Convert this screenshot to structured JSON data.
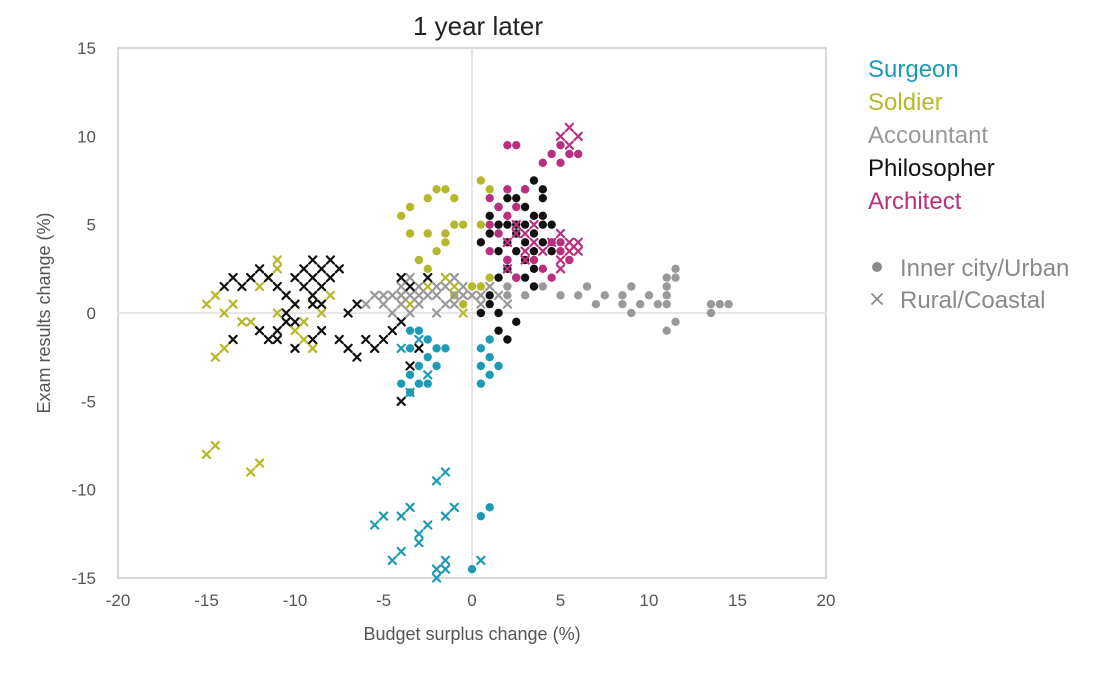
{
  "chart_data": {
    "type": "scatter",
    "title": "1 year later",
    "xlabel": "Budget surplus change (%)",
    "ylabel": "Exam results change (%)",
    "xlim": [
      -20,
      20
    ],
    "ylim": [
      -15,
      15
    ],
    "xticks": [
      -20,
      -15,
      -10,
      -5,
      0,
      5,
      10,
      15,
      20
    ],
    "yticks": [
      -15,
      -10,
      -5,
      0,
      5,
      10,
      15
    ],
    "grid": "zero lines only",
    "legend_position": "right",
    "marker_legend": [
      {
        "marker": "circle",
        "label": "Inner city/Urban"
      },
      {
        "marker": "cross",
        "label": "Rural/Coastal"
      }
    ],
    "series": [
      {
        "name": "Surgeon",
        "color": "#1e9ab5",
        "urban": [
          [
            -3.5,
            -1
          ],
          [
            -3,
            -1
          ],
          [
            -2.5,
            -1.5
          ],
          [
            -3.5,
            -2
          ],
          [
            -2,
            -2
          ],
          [
            -1.5,
            -2
          ],
          [
            -3,
            -3
          ],
          [
            -2.5,
            -2.5
          ],
          [
            -2,
            -3
          ],
          [
            -4,
            -4
          ],
          [
            -3.5,
            -3.5
          ],
          [
            -3,
            -4
          ],
          [
            -2.5,
            -4
          ],
          [
            -3.5,
            -4.5
          ],
          [
            0.5,
            -2
          ],
          [
            1,
            -2.5
          ],
          [
            0.5,
            -3
          ],
          [
            1.5,
            -3
          ],
          [
            1,
            -3.5
          ],
          [
            0.5,
            -4
          ],
          [
            1,
            -1.5
          ],
          [
            0.5,
            -11.5
          ],
          [
            1,
            -11
          ],
          [
            0,
            -14.5
          ]
        ],
        "rural": [
          [
            -4,
            -2
          ],
          [
            -3,
            -1.5
          ],
          [
            -2.5,
            -3.5
          ],
          [
            -3.5,
            -4.5
          ],
          [
            -5.5,
            -12
          ],
          [
            -5,
            -11.5
          ],
          [
            -4,
            -11.5
          ],
          [
            -3.5,
            -11
          ],
          [
            -3,
            -12.5
          ],
          [
            -2.5,
            -12
          ],
          [
            -2,
            -9.5
          ],
          [
            -1.5,
            -9
          ],
          [
            -1.5,
            -11.5
          ],
          [
            -1,
            -11
          ],
          [
            -4.5,
            -14
          ],
          [
            -4,
            -13.5
          ],
          [
            -3,
            -13
          ],
          [
            -2,
            -14.5
          ],
          [
            -1.5,
            -14
          ],
          [
            -2,
            -15
          ],
          [
            -1.5,
            -14.5
          ],
          [
            0.5,
            -14
          ]
        ]
      },
      {
        "name": "Soldier",
        "color": "#b5b82a",
        "urban": [
          [
            -4,
            5.5
          ],
          [
            -3.5,
            6
          ],
          [
            -2.5,
            6.5
          ],
          [
            -2,
            7
          ],
          [
            -1.5,
            7
          ],
          [
            -1,
            6.5
          ],
          [
            -3.5,
            4.5
          ],
          [
            -2.5,
            4.5
          ],
          [
            -1.5,
            4.5
          ],
          [
            -1,
            5
          ],
          [
            -0.5,
            5
          ],
          [
            -3,
            3
          ],
          [
            -2,
            3.5
          ],
          [
            -1.5,
            4
          ],
          [
            -2.5,
            2.5
          ],
          [
            -1,
            1
          ],
          [
            -0.5,
            0.5
          ],
          [
            0.5,
            7.5
          ],
          [
            1,
            7
          ],
          [
            0.5,
            5
          ],
          [
            0,
            1.5
          ],
          [
            0.5,
            1.5
          ],
          [
            1,
            2
          ]
        ],
        "rural": [
          [
            -15,
            0.5
          ],
          [
            -14.5,
            1
          ],
          [
            -14,
            0
          ],
          [
            -13.5,
            0.5
          ],
          [
            -13,
            -0.5
          ],
          [
            -12,
            1.5
          ],
          [
            -11.5,
            2
          ],
          [
            -11,
            2.5
          ],
          [
            -11,
            3
          ],
          [
            -10.5,
            1
          ],
          [
            -10,
            0.5
          ],
          [
            -10,
            -1
          ],
          [
            -9.5,
            -1.5
          ],
          [
            -9,
            -2
          ],
          [
            -9.5,
            -0.5
          ],
          [
            -9,
            0.5
          ],
          [
            -8.5,
            0
          ],
          [
            -8,
            1
          ],
          [
            -12.5,
            -0.5
          ],
          [
            -11,
            0
          ],
          [
            -13.5,
            -1.5
          ],
          [
            -14.5,
            -2.5
          ],
          [
            -14,
            -2
          ],
          [
            -15,
            -8
          ],
          [
            -14.5,
            -7.5
          ],
          [
            -12.5,
            -9
          ],
          [
            -12,
            -8.5
          ],
          [
            -4,
            1
          ],
          [
            -3.5,
            0.5
          ],
          [
            -2.5,
            1.5
          ],
          [
            -1.5,
            2
          ],
          [
            -1,
            1.5
          ],
          [
            -0.5,
            0
          ]
        ]
      },
      {
        "name": "Accountant",
        "color": "#999999",
        "urban": [
          [
            2,
            1
          ],
          [
            3,
            1
          ],
          [
            4,
            1.5
          ],
          [
            5,
            1
          ],
          [
            6,
            1
          ],
          [
            6.5,
            1.5
          ],
          [
            7,
            0.5
          ],
          [
            7.5,
            1
          ],
          [
            8.5,
            1
          ],
          [
            9,
            1.5
          ],
          [
            8.5,
            0.5
          ],
          [
            9.5,
            0.5
          ],
          [
            10,
            1
          ],
          [
            10.5,
            0.5
          ],
          [
            11,
            1.5
          ],
          [
            11,
            0.5
          ],
          [
            11,
            2
          ],
          [
            11.5,
            2
          ],
          [
            11.5,
            2.5
          ],
          [
            11,
            1
          ],
          [
            9,
            0
          ],
          [
            11.5,
            -0.5
          ],
          [
            11,
            -1
          ],
          [
            13.5,
            0
          ],
          [
            14,
            0.5
          ],
          [
            13.5,
            0.5
          ],
          [
            14.5,
            0.5
          ],
          [
            1.5,
            2
          ],
          [
            2,
            1.5
          ]
        ],
        "rural": [
          [
            -6,
            0.5
          ],
          [
            -5.5,
            1
          ],
          [
            -5,
            1
          ],
          [
            -5,
            0.5
          ],
          [
            -4.5,
            1
          ],
          [
            -4,
            1
          ],
          [
            -4,
            0.5
          ],
          [
            -3.5,
            1
          ],
          [
            -3,
            0.5
          ],
          [
            -2.5,
            1
          ],
          [
            -2,
            1
          ],
          [
            -1.5,
            0.5
          ],
          [
            -1,
            0.5
          ],
          [
            -0.5,
            1
          ],
          [
            -0.5,
            1.5
          ],
          [
            0,
            1
          ],
          [
            0.5,
            1
          ],
          [
            1,
            1.5
          ],
          [
            1.5,
            1
          ],
          [
            2,
            0.5
          ],
          [
            -4.5,
            0
          ],
          [
            -3.5,
            0
          ],
          [
            -3,
            1
          ],
          [
            -2,
            0
          ],
          [
            -1,
            1
          ],
          [
            -1.5,
            1.5
          ],
          [
            -3.5,
            2
          ],
          [
            -1,
            2
          ],
          [
            0.5,
            0.5
          ],
          [
            -2,
            1.5
          ],
          [
            -4,
            1.5
          ],
          [
            -3,
            1.5
          ]
        ]
      },
      {
        "name": "Philosopher",
        "color": "#111111",
        "urban": [
          [
            0.5,
            4
          ],
          [
            1,
            4.5
          ],
          [
            1,
            5.5
          ],
          [
            1.5,
            5
          ],
          [
            1.5,
            6
          ],
          [
            2,
            5
          ],
          [
            2,
            4
          ],
          [
            1.5,
            3.5
          ],
          [
            2,
            3
          ],
          [
            2.5,
            3.5
          ],
          [
            2.5,
            4.5
          ],
          [
            3,
            5
          ],
          [
            3,
            4
          ],
          [
            3,
            3
          ],
          [
            3.5,
            3.5
          ],
          [
            3.5,
            4.5
          ],
          [
            4,
            4
          ],
          [
            4,
            5
          ],
          [
            3.5,
            5.5
          ],
          [
            3,
            6
          ],
          [
            2.5,
            6.5
          ],
          [
            3,
            7
          ],
          [
            3.5,
            7.5
          ],
          [
            4,
            6.5
          ],
          [
            4,
            7
          ],
          [
            4,
            5.5
          ],
          [
            2.5,
            5
          ],
          [
            2,
            6.5
          ],
          [
            2,
            2.5
          ],
          [
            1.5,
            2
          ],
          [
            2.5,
            2
          ],
          [
            3,
            2
          ],
          [
            3.5,
            2.5
          ],
          [
            3.5,
            1.5
          ],
          [
            4.5,
            5
          ],
          [
            4.5,
            3.5
          ],
          [
            1,
            1
          ],
          [
            1.5,
            0
          ],
          [
            1,
            0.5
          ],
          [
            0.5,
            0
          ],
          [
            1.5,
            -1
          ],
          [
            2.5,
            -0.5
          ],
          [
            2,
            -1.5
          ]
        ],
        "rural": [
          [
            -14,
            1.5
          ],
          [
            -13.5,
            2
          ],
          [
            -13,
            1.5
          ],
          [
            -12.5,
            2
          ],
          [
            -12,
            2.5
          ],
          [
            -11.5,
            2
          ],
          [
            -11,
            1.5
          ],
          [
            -10.5,
            1
          ],
          [
            -10,
            0.5
          ],
          [
            -10.5,
            0
          ],
          [
            -10,
            -0.5
          ],
          [
            -9.5,
            1.5
          ],
          [
            -9,
            1
          ],
          [
            -9,
            0.5
          ],
          [
            -8.5,
            1.5
          ],
          [
            -8.5,
            0.5
          ],
          [
            -9,
            2
          ],
          [
            -8,
            2
          ],
          [
            -8,
            3
          ],
          [
            -7.5,
            2.5
          ],
          [
            -9.5,
            2.5
          ],
          [
            -9,
            3
          ],
          [
            -8.5,
            2.5
          ],
          [
            -10,
            2
          ],
          [
            -11,
            -1
          ],
          [
            -10.5,
            -0.5
          ],
          [
            -10,
            -2
          ],
          [
            -11,
            -1.5
          ],
          [
            -11.5,
            -1.5
          ],
          [
            -12,
            -1
          ],
          [
            -13.5,
            -1.5
          ],
          [
            -9,
            -1.5
          ],
          [
            -8.5,
            -1
          ],
          [
            -7.5,
            -1.5
          ],
          [
            -7,
            0
          ],
          [
            -6.5,
            0.5
          ],
          [
            -7,
            -2
          ],
          [
            -6.5,
            -2.5
          ],
          [
            -6,
            -1.5
          ],
          [
            -5.5,
            -2
          ],
          [
            -5,
            -1.5
          ],
          [
            -4.5,
            -1
          ],
          [
            -4,
            -0.5
          ],
          [
            -4,
            -5
          ],
          [
            -3.5,
            -3
          ],
          [
            -3,
            -2
          ],
          [
            -4,
            2
          ],
          [
            -3.5,
            1.5
          ],
          [
            -2.5,
            2
          ]
        ]
      },
      {
        "name": "Architect",
        "color": "#b8307e",
        "urban": [
          [
            2,
            9.5
          ],
          [
            2.5,
            9.5
          ],
          [
            4,
            8.5
          ],
          [
            4.5,
            9
          ],
          [
            5,
            9.5
          ],
          [
            5,
            8.5
          ],
          [
            5.5,
            9
          ],
          [
            6,
            9
          ],
          [
            1,
            6.5
          ],
          [
            1.5,
            6
          ],
          [
            2,
            7
          ],
          [
            2.5,
            6
          ],
          [
            3,
            7
          ],
          [
            1,
            5
          ],
          [
            1.5,
            4.5
          ],
          [
            2,
            3
          ],
          [
            2.5,
            2
          ],
          [
            3.5,
            3
          ],
          [
            4,
            2.5
          ],
          [
            4.5,
            2
          ],
          [
            4.5,
            4
          ],
          [
            5,
            3.5
          ],
          [
            5,
            4
          ],
          [
            5.5,
            3
          ],
          [
            1,
            3.5
          ],
          [
            2,
            5.5
          ]
        ],
        "rural": [
          [
            5,
            10
          ],
          [
            5.5,
            10.5
          ],
          [
            5.5,
            9.5
          ],
          [
            6,
            10
          ],
          [
            2,
            4
          ],
          [
            2.5,
            4.5
          ],
          [
            3,
            4.5
          ],
          [
            3,
            3.5
          ],
          [
            3.5,
            4
          ],
          [
            4,
            3.5
          ],
          [
            4.5,
            4
          ],
          [
            5,
            4.5
          ],
          [
            5,
            3
          ],
          [
            5.5,
            3.5
          ],
          [
            5.5,
            4
          ],
          [
            6,
            4
          ],
          [
            6,
            3.5
          ],
          [
            5,
            2.5
          ],
          [
            2,
            2.5
          ],
          [
            3,
            3
          ],
          [
            2.5,
            5
          ],
          [
            3.5,
            5
          ]
        ]
      }
    ]
  }
}
